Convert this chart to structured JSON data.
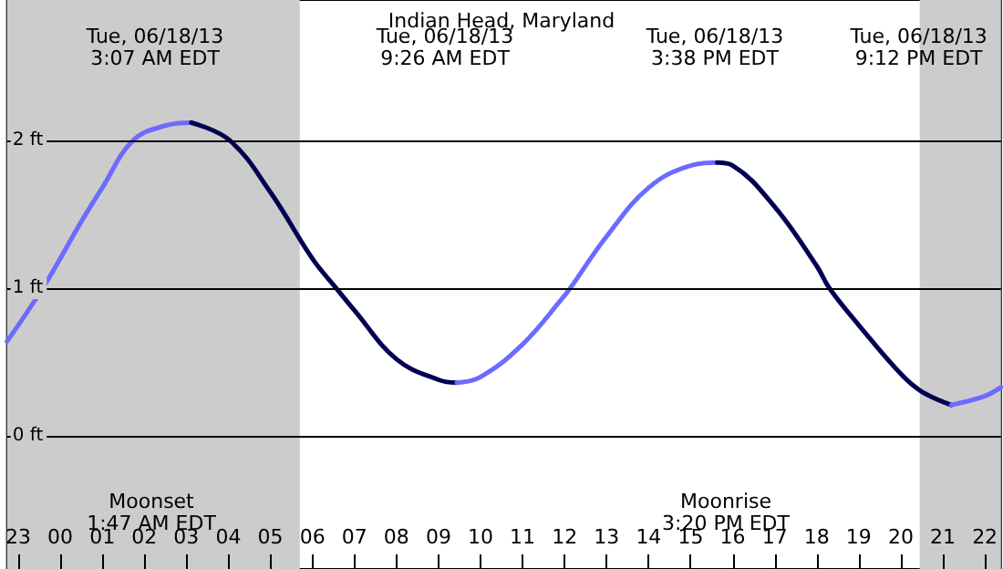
{
  "chart_data": {
    "type": "line",
    "title": "Indian Head, Maryland",
    "series": [
      {
        "color": "#6b6bff",
        "x": [
          "--06-17T22:44",
          "--06-17T23:35",
          "--06-18T00:30",
          "--06-18T01:00",
          "--06-18T01:44",
          "--06-18T02:30",
          "--06-18T03:07"
        ],
        "values": [
          0.64,
          1.0,
          1.45,
          1.68,
          2.0,
          2.1,
          2.12
        ]
      },
      {
        "color": "#000050",
        "x": [
          "--06-18T03:07",
          "--06-18T04:02",
          "--06-18T05:00",
          "--06-18T06:00",
          "--06-18T06:34",
          "--06-18T07:00",
          "--06-18T08:00",
          "--06-18T09:00",
          "--06-18T09:26"
        ],
        "values": [
          2.12,
          2.0,
          1.65,
          1.2,
          1.0,
          0.85,
          0.52,
          0.38,
          0.36
        ]
      },
      {
        "color": "#6b6bff",
        "x": [
          "--06-18T09:26",
          "--06-18T10:00",
          "--06-18T11:00",
          "--06-18T12:00",
          "--06-18T12:08",
          "--06-18T13:00",
          "--06-18T14:00",
          "--06-18T15:00",
          "--06-18T15:38"
        ],
        "values": [
          0.36,
          0.4,
          0.62,
          0.95,
          1.0,
          1.35,
          1.68,
          1.83,
          1.85
        ]
      },
      {
        "color": "#000050",
        "x": [
          "--06-18T15:38",
          "--06-18T16:00",
          "--06-18T17:00",
          "--06-18T18:00",
          "--06-18T18:18",
          "--06-18T19:00",
          "--06-18T20:00",
          "--06-18T20:30",
          "--06-18T21:12"
        ],
        "values": [
          1.85,
          1.83,
          1.55,
          1.15,
          1.0,
          0.75,
          0.42,
          0.3,
          0.21
        ]
      },
      {
        "color": "#6b6bff",
        "x": [
          "--06-18T21:12",
          "--06-18T22:00",
          "--06-18T22:23"
        ],
        "values": [
          0.21,
          0.27,
          0.33
        ]
      }
    ],
    "xlim": [
      "--06-17T22:44",
      "--06-18T22:23"
    ],
    "xticks": [
      {
        "value": "--06-17T23:00",
        "label": "23"
      },
      {
        "value": "--06-18T00:00",
        "label": "00"
      },
      {
        "value": "--06-18T01:00",
        "label": "01"
      },
      {
        "value": "--06-18T02:00",
        "label": "02"
      },
      {
        "value": "--06-18T03:00",
        "label": "03"
      },
      {
        "value": "--06-18T04:00",
        "label": "04"
      },
      {
        "value": "--06-18T05:00",
        "label": "05"
      },
      {
        "value": "--06-18T06:00",
        "label": "06"
      },
      {
        "value": "--06-18T07:00",
        "label": "07"
      },
      {
        "value": "--06-18T08:00",
        "label": "08"
      },
      {
        "value": "--06-18T09:00",
        "label": "09"
      },
      {
        "value": "--06-18T10:00",
        "label": "10"
      },
      {
        "value": "--06-18T11:00",
        "label": "11"
      },
      {
        "value": "--06-18T12:00",
        "label": "12"
      },
      {
        "value": "--06-18T13:00",
        "label": "13"
      },
      {
        "value": "--06-18T14:00",
        "label": "14"
      },
      {
        "value": "--06-18T15:00",
        "label": "15"
      },
      {
        "value": "--06-18T16:00",
        "label": "16"
      },
      {
        "value": "--06-18T17:00",
        "label": "17"
      },
      {
        "value": "--06-18T18:00",
        "label": "18"
      },
      {
        "value": "--06-18T19:00",
        "label": "19"
      },
      {
        "value": "--06-18T20:00",
        "label": "20"
      },
      {
        "value": "--06-18T21:00",
        "label": "21"
      },
      {
        "value": "--06-18T22:00",
        "label": "22"
      }
    ],
    "ylim": [
      -0.9,
      2.95
    ],
    "yticks": [
      {
        "value": 0,
        "label": "0 ft"
      },
      {
        "value": 1,
        "label": "1 ft"
      },
      {
        "value": 2,
        "label": "2 ft"
      }
    ],
    "grid": "y",
    "marker": "none",
    "line_style": "solid",
    "bands": [
      {
        "axis": "x",
        "from": "--06-17T22:44",
        "to": "--06-18T05:42",
        "color": "#cccccc"
      },
      {
        "axis": "x",
        "from": "--06-18T20:27",
        "to": "--06-18T22:23",
        "color": "#cccccc"
      }
    ],
    "annotations": [
      "Tue, 06/18/13\n3:07 AM EDT",
      "Tue, 06/18/13\n9:26 AM EDT",
      "Tue, 06/18/13\n3:38 PM EDT",
      "Tue, 06/18/13\n9:12 PM EDT",
      "Moonset\n1:47 AM EDT",
      "Moonrise\n3:20 PM EDT"
    ]
  }
}
